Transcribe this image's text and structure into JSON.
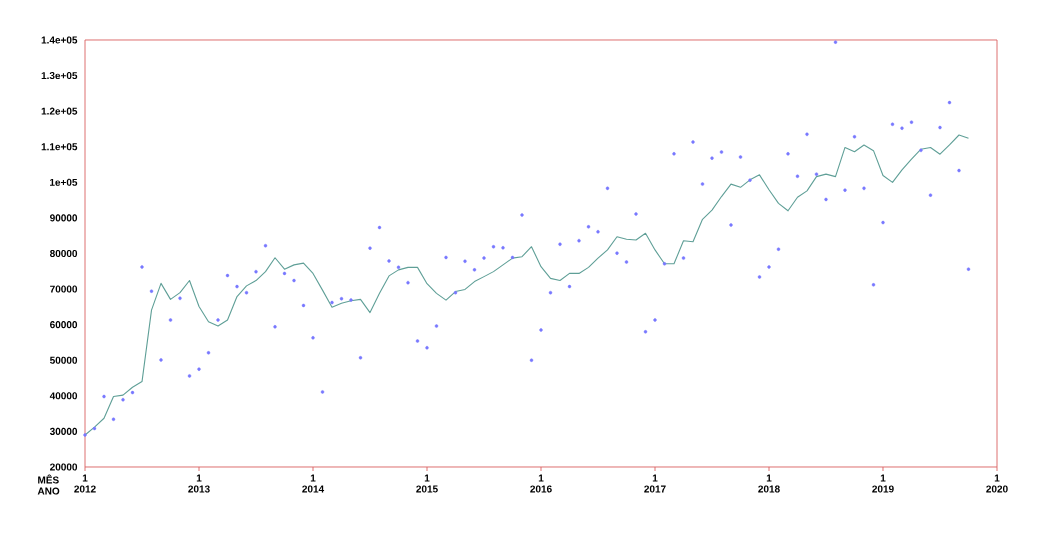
{
  "chart_data": {
    "type": "line",
    "xlabel": "MÊS ANO",
    "x": [
      "2012-01",
      "2012-02",
      "2012-03",
      "2012-04",
      "2012-05",
      "2012-06",
      "2012-07",
      "2012-08",
      "2012-09",
      "2012-10",
      "2012-11",
      "2012-12",
      "2013-01",
      "2013-02",
      "2013-03",
      "2013-04",
      "2013-05",
      "2013-06",
      "2013-07",
      "2013-08",
      "2013-09",
      "2013-10",
      "2013-11",
      "2013-12",
      "2014-01",
      "2014-02",
      "2014-03",
      "2014-04",
      "2014-05",
      "2014-06",
      "2014-07",
      "2014-08",
      "2014-09",
      "2014-10",
      "2014-11",
      "2014-12",
      "2015-01",
      "2015-02",
      "2015-03",
      "2015-04",
      "2015-05",
      "2015-06",
      "2015-07",
      "2015-08",
      "2015-09",
      "2015-10",
      "2015-11",
      "2015-12",
      "2016-01",
      "2016-02",
      "2016-03",
      "2016-04",
      "2016-05",
      "2016-06",
      "2016-07",
      "2016-08",
      "2016-09",
      "2016-10",
      "2016-11",
      "2016-12",
      "2017-01",
      "2017-02",
      "2017-03",
      "2017-04",
      "2017-05",
      "2017-06",
      "2017-07",
      "2017-08",
      "2017-09",
      "2017-10",
      "2017-11",
      "2017-12",
      "2018-01",
      "2018-02",
      "2018-03",
      "2018-04",
      "2018-05",
      "2018-06",
      "2018-07",
      "2018-08",
      "2018-09",
      "2018-10",
      "2018-11",
      "2018-12",
      "2019-01",
      "2019-02",
      "2019-03",
      "2019-04",
      "2019-05",
      "2019-06",
      "2019-07",
      "2019-08",
      "2019-09",
      "2019-10"
    ],
    "series": [
      {
        "type": "scatter",
        "marker": "circle",
        "color": "#7878ff",
        "values": [
          29000,
          30800,
          39800,
          33400,
          38900,
          40900,
          76200,
          69400,
          50100,
          61300,
          67400,
          45600,
          47500,
          52100,
          61300,
          73800,
          70700,
          69000,
          74900,
          82200,
          59400,
          74400,
          72400,
          65400,
          56300,
          41100,
          66200,
          67300,
          66900,
          50700,
          81500,
          87300,
          77900,
          76100,
          71800,
          55400,
          53500,
          59600,
          78900,
          69000,
          77800,
          75400,
          78700,
          81900,
          81600,
          78900,
          90800,
          50000,
          58500,
          69000,
          82600,
          70700,
          83600,
          87500,
          86100,
          98300,
          80100,
          77600,
          91100,
          58000,
          61300,
          77100,
          108000,
          78700,
          111300,
          99500,
          106800,
          108500,
          88000,
          107100,
          100600,
          73400,
          76200,
          81200,
          108000,
          101700,
          113500,
          102300,
          95200,
          139400,
          97800,
          112800,
          98300,
          71200,
          88700,
          116300,
          115200,
          116900,
          109000,
          96400,
          115400,
          122400,
          103300,
          75600
        ]
      },
      {
        "line_style": "solid",
        "color": "#5f9f97",
        "values": [
          29000,
          31200,
          33700,
          39800,
          40200,
          42400,
          44000,
          64100,
          71600,
          67100,
          69000,
          72400,
          65100,
          60800,
          59600,
          61300,
          67900,
          70900,
          72400,
          74900,
          78800,
          75600,
          76800,
          77300,
          74400,
          69700,
          64900,
          66000,
          66700,
          67100,
          63400,
          68800,
          73700,
          75400,
          76100,
          76100,
          71500,
          68800,
          66900,
          69300,
          69900,
          72100,
          73500,
          74900,
          76800,
          78700,
          79100,
          81900,
          76300,
          73000,
          72400,
          74400,
          74400,
          76100,
          78700,
          81000,
          84700,
          84000,
          83800,
          85700,
          81000,
          77100,
          77100,
          83600,
          83300,
          89600,
          92200,
          96000,
          99500,
          98600,
          100700,
          102100,
          97900,
          94100,
          92000,
          95800,
          97600,
          101600,
          102300,
          101600,
          109800,
          108600,
          110500,
          108900,
          101900,
          100000,
          103500,
          106500,
          109300,
          109800,
          107900,
          110500,
          113300,
          112400
        ]
      }
    ],
    "xlim": [
      "2012-01",
      "2020-01"
    ],
    "xticks": [
      {
        "value": "2012-01",
        "label": "1 2012"
      },
      {
        "value": "2013-01",
        "label": "1 2013"
      },
      {
        "value": "2014-01",
        "label": "1 2014"
      },
      {
        "value": "2015-01",
        "label": "1 2015"
      },
      {
        "value": "2016-01",
        "label": "1 2016"
      },
      {
        "value": "2017-01",
        "label": "1 2017"
      },
      {
        "value": "2018-01",
        "label": "1 2018"
      },
      {
        "value": "2019-01",
        "label": "1 2019"
      },
      {
        "value": "2020-01",
        "label": "1 2020"
      }
    ],
    "ylim": [
      20000,
      140000
    ],
    "yticks": [
      20000,
      30000,
      40000,
      50000,
      60000,
      70000,
      80000,
      90000,
      {
        "value": 100000,
        "label": "1e+05"
      },
      {
        "value": 110000,
        "label": "1.1e+05"
      },
      {
        "value": 120000,
        "label": "1.2e+05"
      },
      {
        "value": 130000,
        "label": "1.3e+05"
      },
      {
        "value": 140000,
        "label": "1.4e+05"
      }
    ],
    "grid": false
  }
}
